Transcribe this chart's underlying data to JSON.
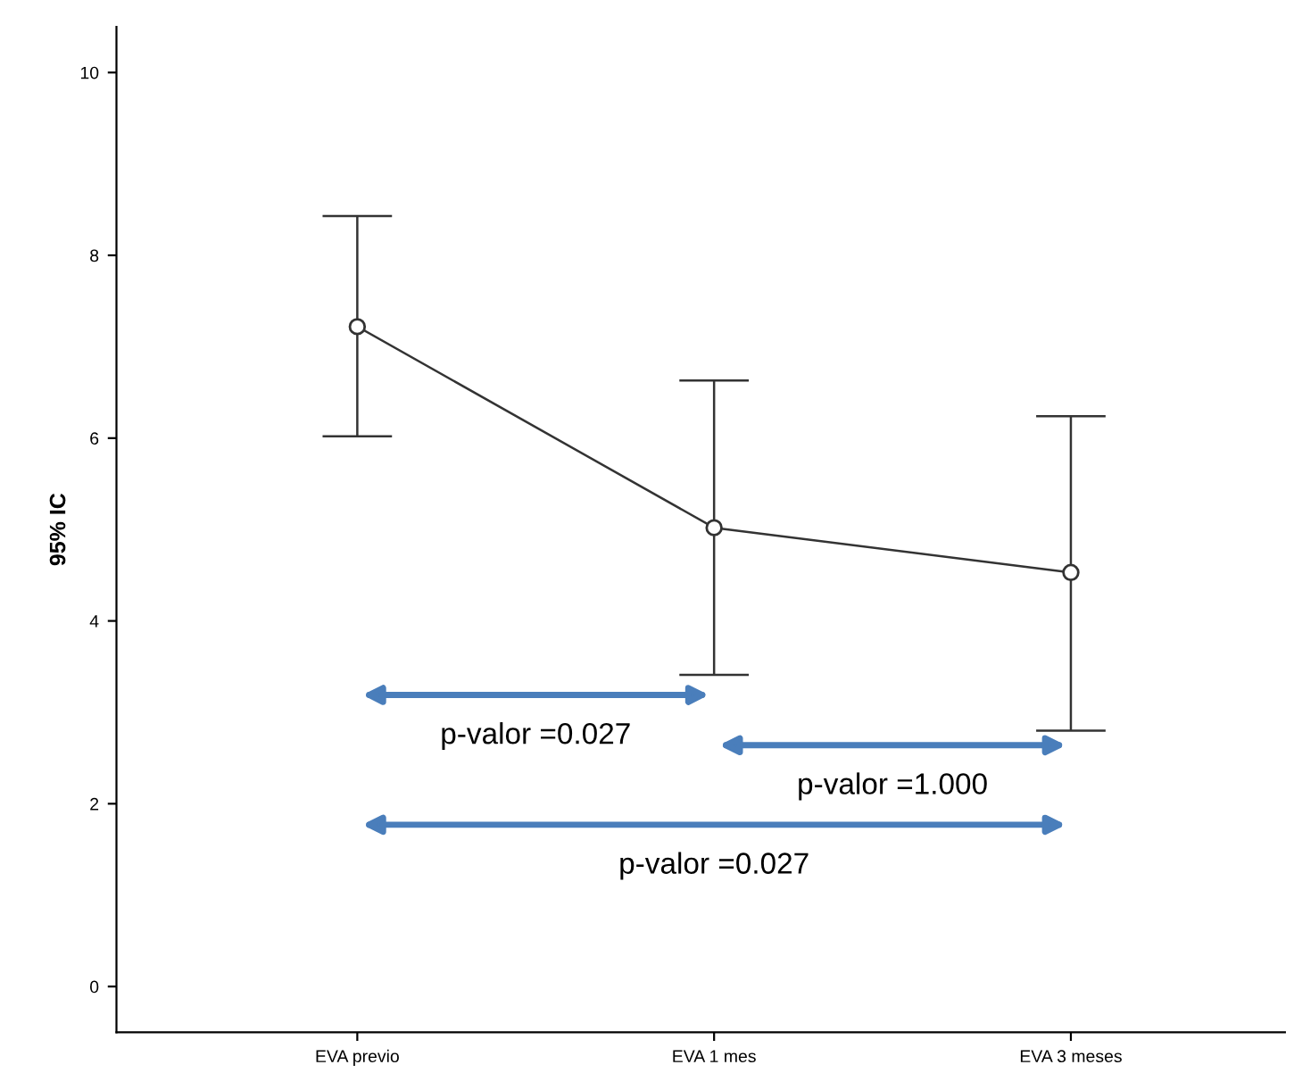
{
  "chart_data": {
    "type": "line",
    "ylabel": "95% IC",
    "categories": [
      "EVA previo",
      "EVA 1 mes",
      "EVA 3 meses"
    ],
    "series": [
      {
        "color": "#333333",
        "values": [
          7.22,
          5.02,
          4.53
        ],
        "errors": [
          [
            6.02,
            8.43
          ],
          [
            3.41,
            6.63
          ],
          [
            2.8,
            6.24
          ]
        ]
      }
    ],
    "ylim": [
      -0.5,
      10.5
    ],
    "yticks": [
      0,
      2,
      4,
      6,
      8,
      10
    ],
    "marker": "circle",
    "line_style": "solid",
    "annotations": [
      "p-valor =0.027",
      "p-valor =1.000",
      "p-valor =0.027"
    ]
  }
}
